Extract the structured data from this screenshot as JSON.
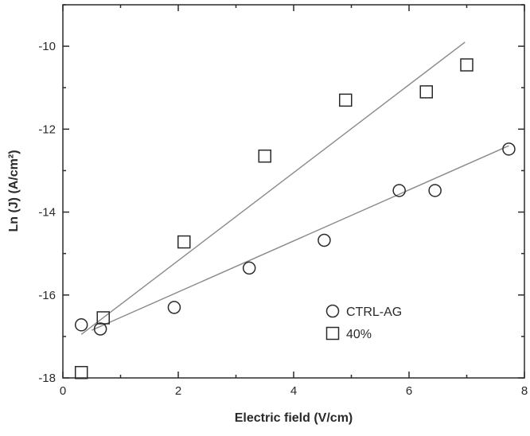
{
  "chart_data": {
    "type": "scatter",
    "xlabel": "Electric field (V/cm)",
    "ylabel": "Ln (J) (A/cm²)",
    "xlim": [
      0,
      8
    ],
    "ylim": [
      -18,
      -9
    ],
    "xticks": [
      0,
      2,
      4,
      6,
      8
    ],
    "yticks": [
      -18,
      -16,
      -14,
      -12,
      -10
    ],
    "x_tick_labels": [
      "0",
      "2",
      "4",
      "6",
      "8"
    ],
    "y_tick_labels": [
      "-18",
      "-16",
      "-14",
      "-12",
      "-10"
    ],
    "grid": false,
    "legend_position": "lower-right",
    "series": [
      {
        "name": "CTRL-AG",
        "marker": "circle",
        "color": "#2a2a2a",
        "points": [
          {
            "x": 0.32,
            "y": -16.72
          },
          {
            "x": 0.65,
            "y": -16.82
          },
          {
            "x": 1.93,
            "y": -16.3
          },
          {
            "x": 3.23,
            "y": -15.35
          },
          {
            "x": 4.53,
            "y": -14.68
          },
          {
            "x": 5.83,
            "y": -13.48
          },
          {
            "x": 6.45,
            "y": -13.48
          },
          {
            "x": 7.73,
            "y": -12.48
          }
        ],
        "fit": {
          "x": [
            0.5,
            7.73
          ],
          "y": [
            -16.85,
            -12.4
          ]
        }
      },
      {
        "name": "40%",
        "marker": "square",
        "color": "#2a2a2a",
        "points": [
          {
            "x": 0.32,
            "y": -17.87
          },
          {
            "x": 0.7,
            "y": -16.55
          },
          {
            "x": 2.1,
            "y": -14.72
          },
          {
            "x": 3.5,
            "y": -12.65
          },
          {
            "x": 4.9,
            "y": -11.3
          },
          {
            "x": 6.3,
            "y": -11.1
          },
          {
            "x": 7.0,
            "y": -10.45
          }
        ],
        "fit": {
          "x": [
            0.32,
            6.97
          ],
          "y": [
            -16.95,
            -9.9
          ]
        }
      }
    ],
    "fit_line_color": "#8a8a8a"
  }
}
